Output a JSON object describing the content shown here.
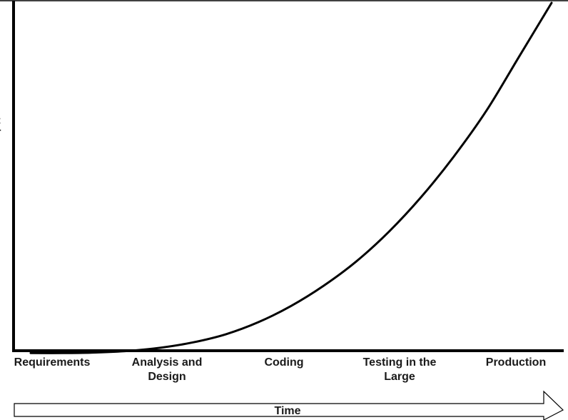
{
  "chart_data": {
    "type": "line",
    "title": "",
    "xlabel": "Time",
    "ylabel": "",
    "categories": [
      "Requirements",
      "Analysis and Design",
      "Coding",
      "Testing in the Large",
      "Production"
    ],
    "category_lines": [
      [
        "Requirements"
      ],
      [
        "Analysis and",
        "Design"
      ],
      [
        "Coding"
      ],
      [
        "Testing in the",
        "Large"
      ],
      [
        "Production"
      ]
    ],
    "series": [
      {
        "x": [
          0,
          0.25,
          0.5,
          0.75,
          1,
          1.25,
          1.5,
          1.75,
          2,
          2.25,
          2.5,
          2.75,
          3,
          3.25,
          3.5,
          3.75,
          4
        ],
        "values": [
          1.0,
          1.0,
          1.02,
          1.08,
          1.2,
          1.4,
          1.7,
          2.15,
          2.75,
          3.5,
          4.4,
          5.5,
          6.8,
          8.3,
          10.0,
          12.0,
          14.0
        ]
      }
    ],
    "xlim": [
      0,
      4
    ],
    "ylim": [
      0,
      14
    ],
    "grid": false,
    "legend": "none",
    "colors": {
      "line": "#000000",
      "axis": "#000000",
      "arrow_fill": "#ffffff"
    }
  }
}
